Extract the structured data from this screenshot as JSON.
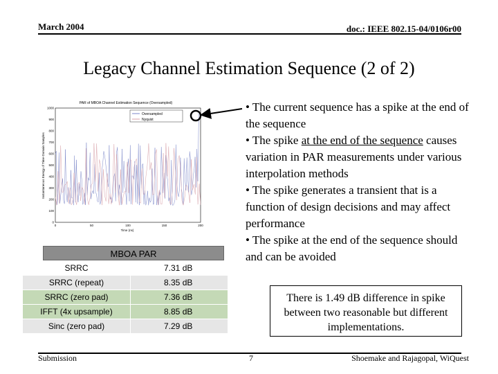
{
  "header": {
    "date": "March 2004",
    "doc_id": "doc.: IEEE 802.15-04/0106r00"
  },
  "title": "Legacy Channel Estimation Sequence (2 of 2)",
  "plot": {
    "title": "PAR of MBOA Channel Estimation Sequence (Oversampled)",
    "ylabel": "Instantaneous Energy of Time-Domain Samples",
    "xlabel": "Time (ns)",
    "legend": [
      "Oversampled",
      "Nyquist"
    ],
    "y_ticks": [
      "1000",
      "900",
      "800",
      "700",
      "600",
      "500",
      "400",
      "300",
      "200",
      "100",
      "0"
    ],
    "x_ticks": [
      "0",
      "50",
      "100",
      "150",
      "200"
    ],
    "colors": {
      "oversampled": "#7a86c8",
      "nyquist": "#d7a0a8"
    }
  },
  "bullets": [
    {
      "pre": "• The current sequence has a spike at the end of the sequence",
      "u": "",
      "post": ""
    },
    {
      "pre": "• The spike ",
      "u": "at the end of the sequence",
      "post": " causes variation in PAR measurements under various interpolation methods"
    },
    {
      "pre": "• The spike generates a transient that is a function of design decisions and may affect performance",
      "u": "",
      "post": ""
    },
    {
      "pre": "• The spike at the end of the sequence should and can be avoided",
      "u": "",
      "post": ""
    }
  ],
  "table": {
    "title": "MBOA PAR",
    "rows": [
      {
        "method": "SRRC",
        "par": "7.31 dB"
      },
      {
        "method": "SRRC (repeat)",
        "par": "8.35 dB"
      },
      {
        "method": "SRRC (zero pad)",
        "par": "7.36 dB"
      },
      {
        "method": "IFFT (4x upsample)",
        "par": "8.85 dB"
      },
      {
        "method": "Sinc (zero pad)",
        "par": "7.29 dB"
      }
    ]
  },
  "note": "There is 1.49 dB difference in spike between two reasonable but different implementations.",
  "footer": {
    "left": "Submission",
    "page": "7",
    "right": "Shoemake and Rajagopal, WiQuest"
  }
}
